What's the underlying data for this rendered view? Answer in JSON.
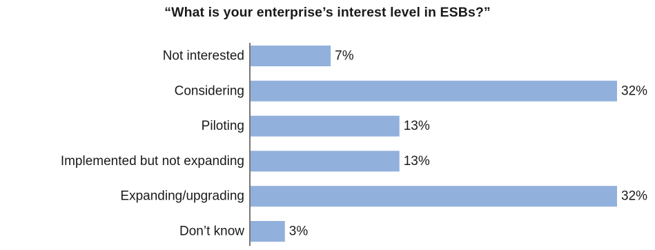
{
  "chart_data": {
    "type": "bar",
    "orientation": "horizontal",
    "title": "“What is your enterprise’s interest level in ESBs?”",
    "categories": [
      "Not interested",
      "Considering",
      "Piloting",
      "Implemented but not expanding",
      "Expanding/upgrading",
      "Don’t know"
    ],
    "values": [
      7,
      32,
      13,
      13,
      32,
      3
    ],
    "value_labels": [
      "7%",
      "32%",
      "13%",
      "13%",
      "32%",
      "3%"
    ],
    "unit": "%",
    "xlim": [
      0,
      32
    ],
    "grid": false,
    "legend": "none",
    "bar_color": "#92b0dc",
    "axis_color": "#4a4a4a"
  }
}
